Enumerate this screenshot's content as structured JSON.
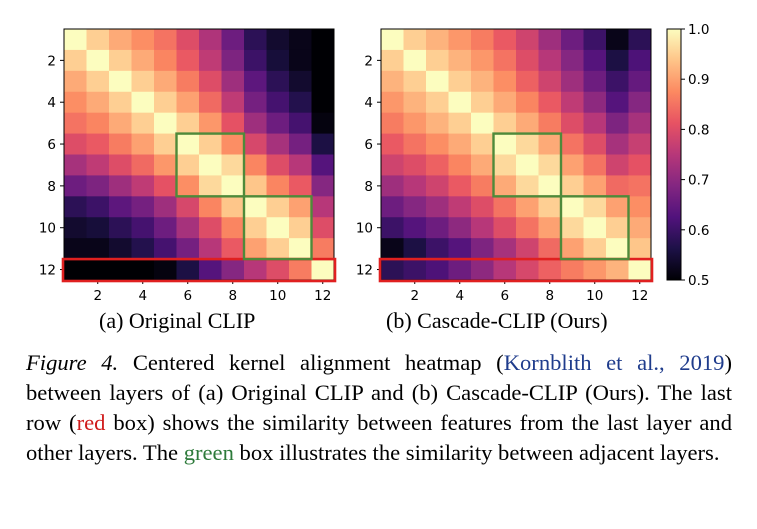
{
  "colors": {
    "highlight_last_row": "#e02020",
    "highlight_adjacent": "#4e8a3a"
  },
  "chart_data": [
    {
      "type": "heatmap",
      "panel_label": "(a) Original CLIP",
      "x_ticks": [
        2,
        4,
        6,
        8,
        10,
        12
      ],
      "y_ticks": [
        2,
        4,
        6,
        8,
        10,
        12
      ],
      "colormap": "magma",
      "vmin": 0.5,
      "vmax": 1.0,
      "highlight_boxes": [
        {
          "color": "red",
          "rows": [
            12,
            12
          ],
          "cols": [
            1,
            12
          ]
        },
        {
          "color": "green",
          "rows": [
            6,
            8
          ],
          "cols": [
            6,
            8
          ]
        },
        {
          "color": "green",
          "rows": [
            9,
            11
          ],
          "cols": [
            9,
            11
          ]
        }
      ],
      "values": [
        [
          1.0,
          0.95,
          0.91,
          0.88,
          0.85,
          0.8,
          0.74,
          0.66,
          0.58,
          0.54,
          0.52,
          0.5
        ],
        [
          0.95,
          1.0,
          0.95,
          0.91,
          0.87,
          0.82,
          0.76,
          0.68,
          0.6,
          0.55,
          0.52,
          0.5
        ],
        [
          0.91,
          0.95,
          1.0,
          0.95,
          0.91,
          0.86,
          0.8,
          0.72,
          0.64,
          0.58,
          0.54,
          0.5
        ],
        [
          0.88,
          0.91,
          0.95,
          1.0,
          0.95,
          0.9,
          0.84,
          0.76,
          0.67,
          0.61,
          0.57,
          0.5
        ],
        [
          0.85,
          0.87,
          0.91,
          0.95,
          1.0,
          0.95,
          0.89,
          0.81,
          0.72,
          0.66,
          0.61,
          0.51
        ],
        [
          0.8,
          0.82,
          0.86,
          0.9,
          0.95,
          1.0,
          0.95,
          0.88,
          0.79,
          0.73,
          0.67,
          0.56
        ],
        [
          0.73,
          0.76,
          0.8,
          0.84,
          0.89,
          0.95,
          1.0,
          0.96,
          0.87,
          0.8,
          0.75,
          0.63
        ],
        [
          0.66,
          0.68,
          0.72,
          0.76,
          0.81,
          0.88,
          0.96,
          1.0,
          0.94,
          0.87,
          0.82,
          0.69
        ],
        [
          0.58,
          0.6,
          0.64,
          0.67,
          0.72,
          0.79,
          0.87,
          0.94,
          1.0,
          0.95,
          0.9,
          0.75
        ],
        [
          0.54,
          0.55,
          0.58,
          0.61,
          0.66,
          0.73,
          0.8,
          0.87,
          0.95,
          1.0,
          0.95,
          0.8
        ],
        [
          0.52,
          0.52,
          0.54,
          0.57,
          0.61,
          0.67,
          0.75,
          0.82,
          0.9,
          0.95,
          1.0,
          0.86
        ],
        [
          0.5,
          0.5,
          0.5,
          0.5,
          0.51,
          0.56,
          0.63,
          0.69,
          0.75,
          0.8,
          0.86,
          1.0
        ]
      ]
    },
    {
      "type": "heatmap",
      "panel_label": "(b) Cascade-CLIP (Ours)",
      "x_ticks": [
        2,
        4,
        6,
        8,
        10,
        12
      ],
      "y_ticks": [
        2,
        4,
        6,
        8,
        10,
        12
      ],
      "colormap": "magma",
      "vmin": 0.5,
      "vmax": 1.0,
      "highlight_boxes": [
        {
          "color": "red",
          "rows": [
            12,
            12
          ],
          "cols": [
            1,
            12
          ]
        },
        {
          "color": "green",
          "rows": [
            6,
            8
          ],
          "cols": [
            6,
            8
          ]
        },
        {
          "color": "green",
          "rows": [
            9,
            11
          ],
          "cols": [
            9,
            11
          ]
        }
      ],
      "values": [
        [
          1.0,
          0.95,
          0.92,
          0.89,
          0.86,
          0.82,
          0.78,
          0.72,
          0.66,
          0.6,
          0.52,
          0.58
        ],
        [
          0.95,
          1.0,
          0.95,
          0.92,
          0.89,
          0.85,
          0.8,
          0.75,
          0.69,
          0.63,
          0.56,
          0.62
        ],
        [
          0.92,
          0.95,
          1.0,
          0.95,
          0.92,
          0.88,
          0.83,
          0.78,
          0.72,
          0.66,
          0.6,
          0.65
        ],
        [
          0.89,
          0.92,
          0.95,
          1.0,
          0.95,
          0.91,
          0.87,
          0.82,
          0.76,
          0.7,
          0.63,
          0.69
        ],
        [
          0.86,
          0.89,
          0.92,
          0.95,
          1.0,
          0.95,
          0.91,
          0.86,
          0.8,
          0.75,
          0.68,
          0.73
        ],
        [
          0.82,
          0.85,
          0.88,
          0.91,
          0.95,
          1.0,
          0.96,
          0.91,
          0.85,
          0.8,
          0.73,
          0.77
        ],
        [
          0.78,
          0.8,
          0.83,
          0.87,
          0.91,
          0.96,
          1.0,
          0.96,
          0.9,
          0.85,
          0.78,
          0.81
        ],
        [
          0.72,
          0.75,
          0.78,
          0.82,
          0.86,
          0.91,
          0.96,
          1.0,
          0.95,
          0.9,
          0.84,
          0.85
        ],
        [
          0.66,
          0.69,
          0.72,
          0.76,
          0.8,
          0.85,
          0.9,
          0.95,
          1.0,
          0.96,
          0.9,
          0.88
        ],
        [
          0.6,
          0.63,
          0.66,
          0.7,
          0.75,
          0.8,
          0.85,
          0.9,
          0.96,
          1.0,
          0.95,
          0.91
        ],
        [
          0.52,
          0.56,
          0.6,
          0.63,
          0.68,
          0.73,
          0.78,
          0.84,
          0.9,
          0.95,
          1.0,
          0.94
        ],
        [
          0.58,
          0.6,
          0.62,
          0.66,
          0.7,
          0.75,
          0.79,
          0.83,
          0.86,
          0.89,
          0.92,
          1.0
        ]
      ]
    }
  ],
  "colorbar": {
    "ticks": [
      "1.0",
      "0.9",
      "0.8",
      "0.7",
      "0.6",
      "0.5"
    ]
  },
  "caption": {
    "label": "Figure 4.",
    "text_1": " Centered kernel alignment heatmap (",
    "citation": "Kornblith et al., 2019",
    "text_2": ") between layers of (a) Original CLIP and (b) Cascade-CLIP (Ours). The last row (",
    "red_word": "red",
    "text_3": " box) shows the similarity between features from the last layer and other layers. The ",
    "green_word": "green",
    "text_4": " box illustrates the similarity between adjacent layers."
  }
}
